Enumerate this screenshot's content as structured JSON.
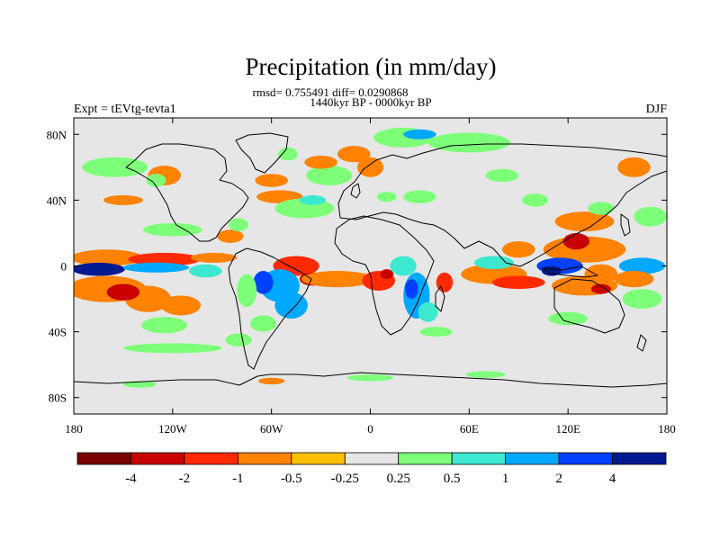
{
  "chart_data": {
    "type": "heatmap",
    "subtype": "global-map-filled-contour",
    "title": "Precipitation (in mm/day)",
    "stats_text": "rmsd= 0.755491 diff= 0.0290868",
    "period_text": "1440kyr BP - 0000kyr BP",
    "experiment_text": "Expt = tEVtg-tevta1",
    "season_text": "DJF",
    "x_axis": {
      "range": [
        -180,
        180
      ],
      "ticks": [
        -180,
        -120,
        -60,
        0,
        60,
        120,
        180
      ],
      "tick_labels": [
        "180",
        "120W",
        "60W",
        "0",
        "60E",
        "120E",
        "180"
      ]
    },
    "y_axis": {
      "range": [
        -90,
        90
      ],
      "ticks": [
        80,
        40,
        0,
        -40,
        -80
      ],
      "tick_labels": [
        "80N",
        "40N",
        "0",
        "40S",
        "80S"
      ]
    },
    "colorbar": {
      "boundaries": [
        -4,
        -2,
        -1,
        -0.5,
        -0.25,
        0.25,
        0.5,
        1,
        2,
        4
      ],
      "labels": [
        "-4",
        "-2",
        "-1",
        "-0.5",
        "-0.25",
        "0.25",
        "0.5",
        "1",
        "2",
        "4"
      ],
      "colors": [
        "#7b0000",
        "#c80000",
        "#ff2a00",
        "#ff8200",
        "#ffc000",
        "#e6e6e6",
        "#7dff7a",
        "#3ce8d0",
        "#00a8ff",
        "#0040ff",
        "#001a90"
      ]
    },
    "background_color": "#e6e6e6",
    "anomaly_regions": [
      {
        "lon": -160,
        "lat": 5,
        "rlon": 22,
        "rlat": 5,
        "level": 3
      },
      {
        "lon": -125,
        "lat": 4,
        "rlon": 22,
        "rlat": 4,
        "level": 2
      },
      {
        "lon": -95,
        "lat": 5,
        "rlon": 14,
        "rlat": 3,
        "level": 3
      },
      {
        "lon": -165,
        "lat": -2,
        "rlon": 16,
        "rlat": 4,
        "level": 10
      },
      {
        "lon": -130,
        "lat": -1,
        "rlon": 20,
        "rlat": 3,
        "level": 8
      },
      {
        "lon": -100,
        "lat": -3,
        "rlon": 10,
        "rlat": 4,
        "level": 7
      },
      {
        "lon": -160,
        "lat": -14,
        "rlon": 24,
        "rlat": 8,
        "level": 3
      },
      {
        "lon": -135,
        "lat": -20,
        "rlon": 14,
        "rlat": 8,
        "level": 3
      },
      {
        "lon": -150,
        "lat": -16,
        "rlon": 10,
        "rlat": 5,
        "level": 1
      },
      {
        "lon": -115,
        "lat": -24,
        "rlon": 12,
        "rlat": 6,
        "level": 3
      },
      {
        "lon": -125,
        "lat": -36,
        "rlon": 14,
        "rlat": 5,
        "level": 6
      },
      {
        "lon": -45,
        "lat": 0,
        "rlon": 14,
        "rlat": 6,
        "level": 2
      },
      {
        "lon": -55,
        "lat": -12,
        "rlon": 12,
        "rlat": 10,
        "level": 8
      },
      {
        "lon": -65,
        "lat": -10,
        "rlon": 6,
        "rlat": 7,
        "level": 9
      },
      {
        "lon": -48,
        "lat": -24,
        "rlon": 10,
        "rlat": 8,
        "level": 8
      },
      {
        "lon": -35,
        "lat": -8,
        "rlon": 8,
        "rlat": 4,
        "level": 1
      },
      {
        "lon": -75,
        "lat": -15,
        "rlon": 6,
        "rlat": 10,
        "level": 6
      },
      {
        "lon": -65,
        "lat": -35,
        "rlon": 8,
        "rlat": 5,
        "level": 6
      },
      {
        "lon": -20,
        "lat": -8,
        "rlon": 22,
        "rlat": 5,
        "level": 3
      },
      {
        "lon": 5,
        "lat": -9,
        "rlon": 10,
        "rlat": 6,
        "level": 2
      },
      {
        "lon": 10,
        "lat": -5,
        "rlon": 4,
        "rlat": 3,
        "level": 1
      },
      {
        "lon": 20,
        "lat": 0,
        "rlon": 8,
        "rlat": 6,
        "level": 7
      },
      {
        "lon": 28,
        "lat": -18,
        "rlon": 8,
        "rlat": 14,
        "level": 8
      },
      {
        "lon": 25,
        "lat": -14,
        "rlon": 4,
        "rlat": 6,
        "level": 9
      },
      {
        "lon": 35,
        "lat": -28,
        "rlon": 6,
        "rlat": 6,
        "level": 7
      },
      {
        "lon": 45,
        "lat": -10,
        "rlon": 5,
        "rlat": 6,
        "level": 2
      },
      {
        "lon": 75,
        "lat": -5,
        "rlon": 20,
        "rlat": 6,
        "level": 3
      },
      {
        "lon": 90,
        "lat": -10,
        "rlon": 16,
        "rlat": 4,
        "level": 2
      },
      {
        "lon": 75,
        "lat": 2,
        "rlon": 12,
        "rlat": 4,
        "level": 7
      },
      {
        "lon": 90,
        "lat": 10,
        "rlon": 10,
        "rlat": 5,
        "level": 3
      },
      {
        "lon": 130,
        "lat": 10,
        "rlon": 25,
        "rlat": 8,
        "level": 3
      },
      {
        "lon": 125,
        "lat": 15,
        "rlon": 8,
        "rlat": 5,
        "level": 1
      },
      {
        "lon": 130,
        "lat": 27,
        "rlon": 18,
        "rlat": 6,
        "level": 3
      },
      {
        "lon": 115,
        "lat": 0,
        "rlon": 14,
        "rlat": 5,
        "level": 9
      },
      {
        "lon": 110,
        "lat": -3,
        "rlon": 6,
        "rlat": 3,
        "level": 10
      },
      {
        "lon": 140,
        "lat": -5,
        "rlon": 10,
        "rlat": 6,
        "level": 3
      },
      {
        "lon": 165,
        "lat": 0,
        "rlon": 14,
        "rlat": 5,
        "level": 8
      },
      {
        "lon": 130,
        "lat": -12,
        "rlon": 20,
        "rlat": 6,
        "level": 3
      },
      {
        "lon": 140,
        "lat": -14,
        "rlon": 6,
        "rlat": 3,
        "level": 1
      },
      {
        "lon": 160,
        "lat": -8,
        "rlon": 12,
        "rlat": 5,
        "level": 3
      },
      {
        "lon": 165,
        "lat": -20,
        "rlon": 12,
        "rlat": 6,
        "level": 6
      },
      {
        "lon": 120,
        "lat": -32,
        "rlon": 12,
        "rlat": 4,
        "level": 6
      },
      {
        "lon": -120,
        "lat": 22,
        "rlon": 18,
        "rlat": 4,
        "level": 6
      },
      {
        "lon": -150,
        "lat": 40,
        "rlon": 12,
        "rlat": 3,
        "level": 3
      },
      {
        "lon": -155,
        "lat": 60,
        "rlon": 20,
        "rlat": 6,
        "level": 6
      },
      {
        "lon": -125,
        "lat": 55,
        "rlon": 10,
        "rlat": 6,
        "level": 3
      },
      {
        "lon": -130,
        "lat": 52,
        "rlon": 6,
        "rlat": 4,
        "level": 6
      },
      {
        "lon": -85,
        "lat": 18,
        "rlon": 8,
        "rlat": 4,
        "level": 3
      },
      {
        "lon": -80,
        "lat": 25,
        "rlon": 6,
        "rlat": 4,
        "level": 6
      },
      {
        "lon": -55,
        "lat": 42,
        "rlon": 14,
        "rlat": 4,
        "level": 3
      },
      {
        "lon": -60,
        "lat": 52,
        "rlon": 10,
        "rlat": 4,
        "level": 3
      },
      {
        "lon": -40,
        "lat": 35,
        "rlon": 18,
        "rlat": 6,
        "level": 6
      },
      {
        "lon": -35,
        "lat": 40,
        "rlon": 8,
        "rlat": 3,
        "level": 7
      },
      {
        "lon": -25,
        "lat": 55,
        "rlon": 14,
        "rlat": 6,
        "level": 6
      },
      {
        "lon": -30,
        "lat": 63,
        "rlon": 10,
        "rlat": 4,
        "level": 3
      },
      {
        "lon": -50,
        "lat": 68,
        "rlon": 6,
        "rlat": 4,
        "level": 6
      },
      {
        "lon": -10,
        "lat": 68,
        "rlon": 10,
        "rlat": 5,
        "level": 3
      },
      {
        "lon": 0,
        "lat": 60,
        "rlon": 8,
        "rlat": 6,
        "level": 3
      },
      {
        "lon": 10,
        "lat": 42,
        "rlon": 6,
        "rlat": 3,
        "level": 6
      },
      {
        "lon": 30,
        "lat": 42,
        "rlon": 10,
        "rlat": 4,
        "level": 6
      },
      {
        "lon": 20,
        "lat": 78,
        "rlon": 18,
        "rlat": 6,
        "level": 6
      },
      {
        "lon": 30,
        "lat": 80,
        "rlon": 10,
        "rlat": 3,
        "level": 8
      },
      {
        "lon": 60,
        "lat": 75,
        "rlon": 25,
        "rlat": 6,
        "level": 6
      },
      {
        "lon": 80,
        "lat": 55,
        "rlon": 10,
        "rlat": 4,
        "level": 6
      },
      {
        "lon": 100,
        "lat": 40,
        "rlon": 8,
        "rlat": 4,
        "level": 6
      },
      {
        "lon": 160,
        "lat": 60,
        "rlon": 10,
        "rlat": 6,
        "level": 3
      },
      {
        "lon": 170,
        "lat": 30,
        "rlon": 10,
        "rlat": 6,
        "level": 6
      },
      {
        "lon": 140,
        "lat": 35,
        "rlon": 8,
        "rlat": 4,
        "level": 6
      },
      {
        "lon": -120,
        "lat": -50,
        "rlon": 30,
        "rlat": 3,
        "level": 6
      },
      {
        "lon": -80,
        "lat": -45,
        "rlon": 8,
        "rlat": 4,
        "level": 6
      },
      {
        "lon": 40,
        "lat": -40,
        "rlon": 10,
        "rlat": 3,
        "level": 6
      },
      {
        "lon": -140,
        "lat": -72,
        "rlon": 10,
        "rlat": 2,
        "level": 6
      },
      {
        "lon": -60,
        "lat": -70,
        "rlon": 8,
        "rlat": 2,
        "level": 3
      },
      {
        "lon": 0,
        "lat": -68,
        "rlon": 14,
        "rlat": 2,
        "level": 6
      },
      {
        "lon": 70,
        "lat": -66,
        "rlon": 12,
        "rlat": 2,
        "level": 6
      }
    ]
  }
}
